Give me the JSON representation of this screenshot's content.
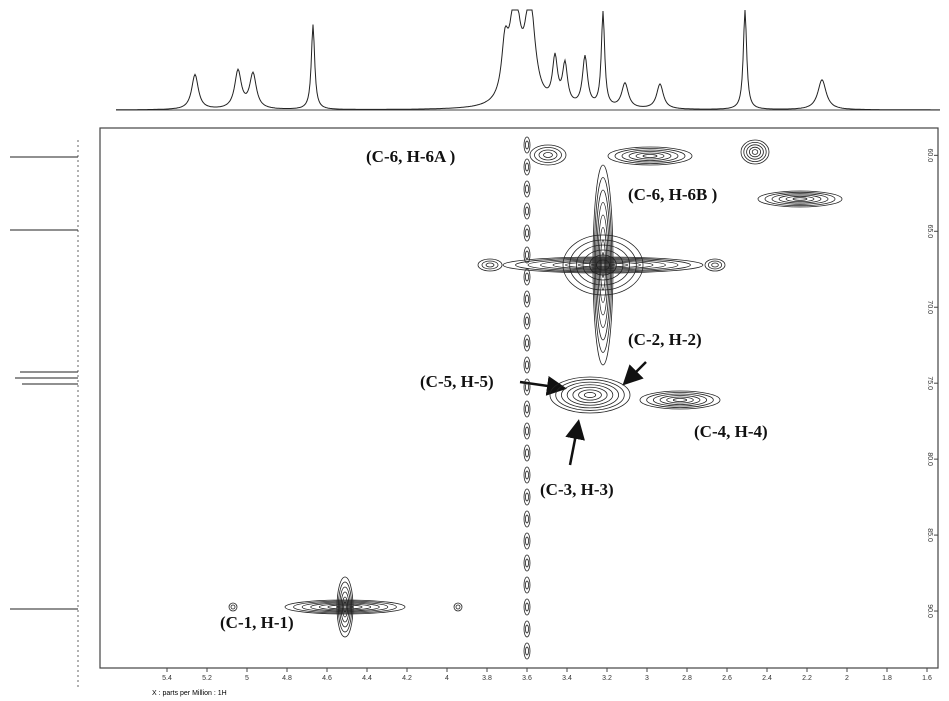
{
  "chart_data": {
    "type": "hsqc",
    "xlabel": "X : parts per Million : 1H",
    "xlim": [
      5.5,
      1.575
    ],
    "xticks": [
      5.4,
      5.2,
      5.0,
      4.8,
      4.6,
      4.4,
      4.2,
      4.0,
      3.8,
      3.6,
      3.4,
      3.2,
      3.0,
      2.8,
      2.6,
      2.4,
      2.2,
      2.0,
      1.8,
      1.6
    ],
    "ylim": [
      58.2,
      93.75
    ],
    "yticks": [
      {
        "value": 60,
        "label": "60.0"
      },
      {
        "value": 65,
        "label": "65.0"
      },
      {
        "value": 70,
        "label": "70.0"
      },
      {
        "value": 75,
        "label": "75.0"
      },
      {
        "value": 80,
        "label": "80.0"
      },
      {
        "value": 85,
        "label": "85.0"
      },
      {
        "value": 90,
        "label": "90.0"
      }
    ],
    "annotations": [
      "(C-6, H-6A )",
      "(C-6, H-6B )",
      "(C-5, H-5)",
      "(C-2, H-2)",
      "(C-4, H-4)",
      "(C-3, H-3)",
      "(C-1, H-1)"
    ]
  }
}
